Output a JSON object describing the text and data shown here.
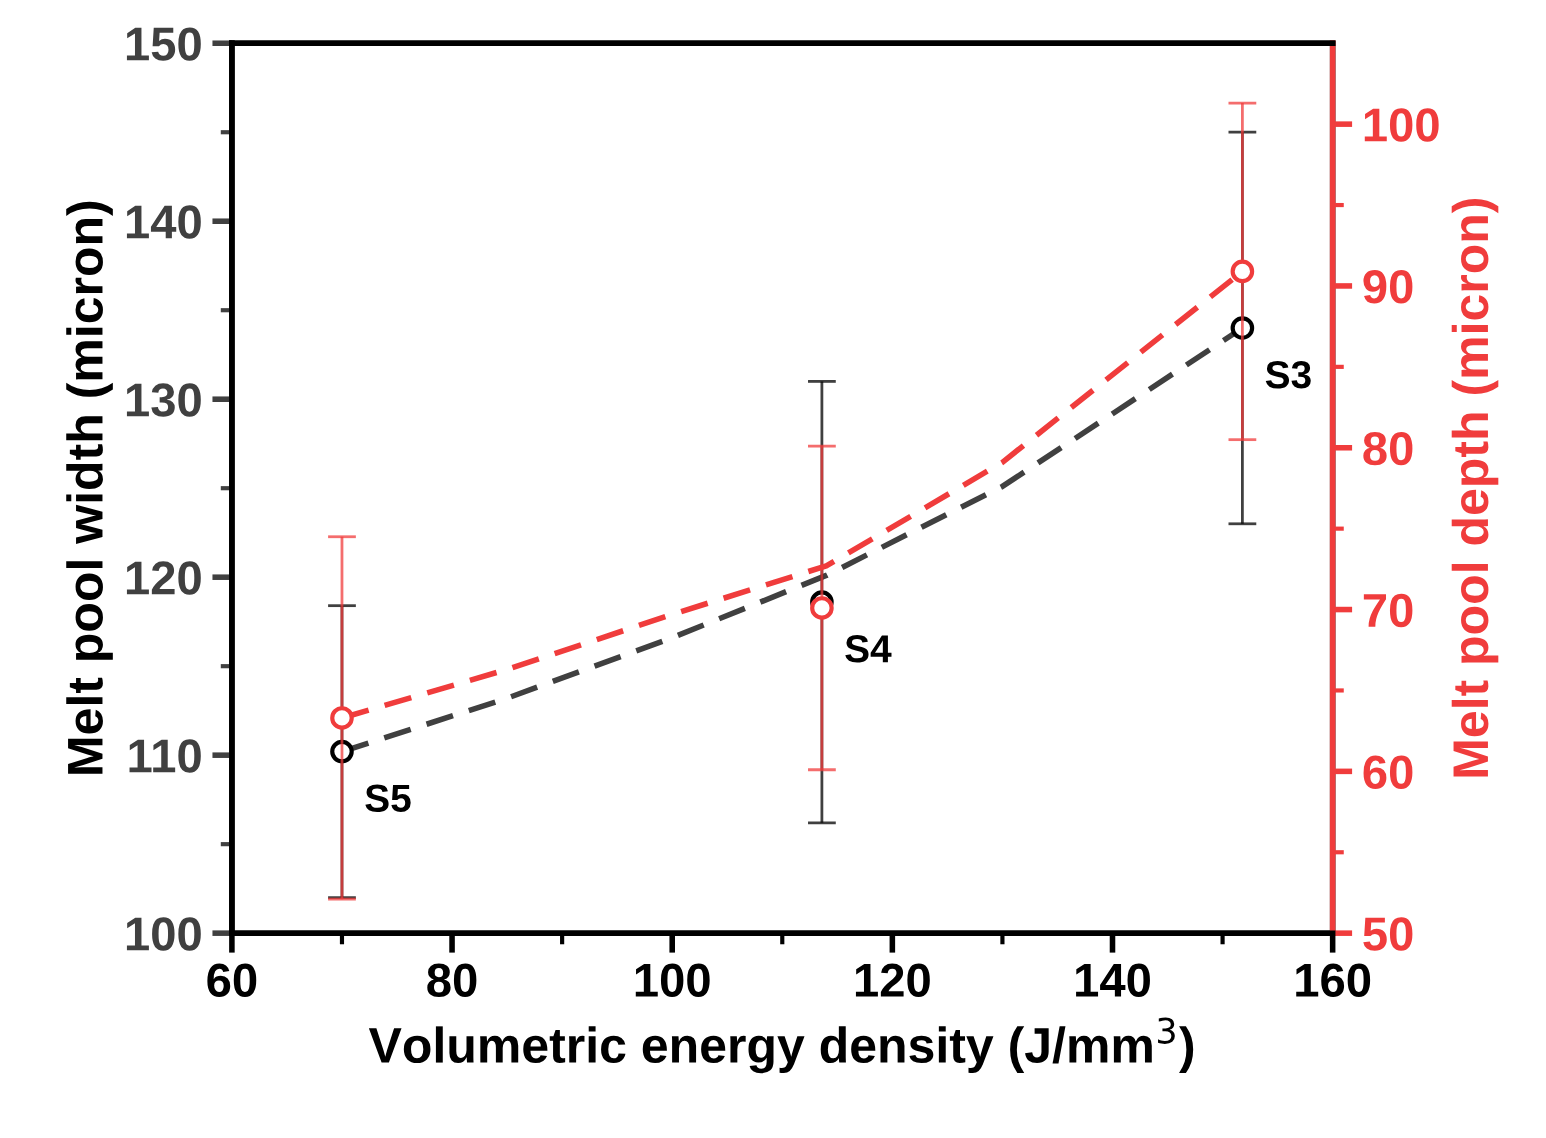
{
  "chart_data": {
    "type": "scatter",
    "xlabel": "Volumetric energy density (J/mm$^{3}$)",
    "ylabel": "Melt pool width (micron)",
    "y2label": "Melt pool depth (micron)",
    "x": [
      70,
      113.6,
      151.8
    ],
    "series": [
      {
        "type": "line",
        "color": "#404040",
        "line_style": "dashed",
        "marker": "none",
        "x": [
          70,
          85,
          100,
          114,
          130,
          151.8
        ],
        "values": [
          110.2,
          113.2,
          116.6,
          120.1,
          125.1,
          134.0
        ]
      },
      {
        "type": "line",
        "color": "#f03c3c",
        "line_style": "dashed",
        "marker": "none",
        "axis": "y2",
        "x": [
          70,
          85,
          100,
          114,
          130,
          151.8
        ],
        "values": [
          63.3,
          66.3,
          69.7,
          72.7,
          79.1,
          90.9
        ]
      },
      {
        "color": "#000000",
        "marker": "circle",
        "values": [
          110.2,
          118.6,
          134.0
        ],
        "errors": [
          8.2,
          12.4,
          11.0
        ]
      },
      {
        "color": "#f03c3c",
        "marker": "circle",
        "axis": "y2",
        "values": [
          63.3,
          70.1,
          90.9
        ],
        "errors": [
          11.2,
          10.0,
          10.4
        ]
      }
    ],
    "annotations": [
      {
        "text": "S5",
        "x": 70,
        "y": 110.2
      },
      {
        "text": "S4",
        "x": 113.6,
        "y": 118.6
      },
      {
        "text": "S3",
        "x": 151.8,
        "y": 134.0
      }
    ],
    "xlim": [
      60,
      160
    ],
    "xticks": [
      60,
      {
        "value": 70,
        "label": null
      },
      80,
      {
        "value": 90,
        "label": null
      },
      100,
      {
        "value": 110,
        "label": null
      },
      120,
      {
        "value": 130,
        "label": null
      },
      140,
      {
        "value": 150,
        "label": null
      },
      160
    ],
    "ylim": [
      100,
      150
    ],
    "yticks": [
      100,
      {
        "value": 105,
        "label": null
      },
      110,
      {
        "value": 115,
        "label": null
      },
      120,
      {
        "value": 125,
        "label": null
      },
      130,
      {
        "value": 135,
        "label": null
      },
      140,
      {
        "value": 145,
        "label": null
      },
      150
    ],
    "y2lim": [
      50,
      105
    ],
    "y2ticks": [
      50,
      {
        "value": 55,
        "label": null
      },
      60,
      {
        "value": 65,
        "label": null
      },
      70,
      {
        "value": 75,
        "label": null
      },
      80,
      {
        "value": 85,
        "label": null
      },
      90,
      {
        "value": 95,
        "label": null
      },
      100
    ],
    "grid": false,
    "legend": false
  }
}
